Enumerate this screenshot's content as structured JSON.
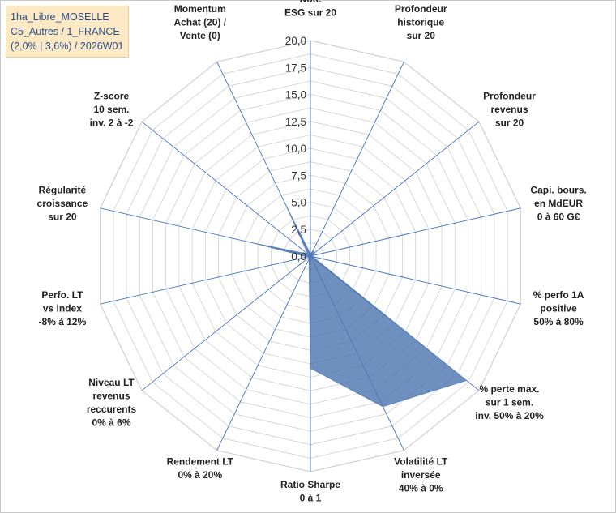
{
  "title_lines": [
    "1ha_Libre_MOSELLE",
    "C5_Autres / 1_FRANCE",
    "(2,0% | 3,6%) / 2026W01"
  ],
  "chart_data": {
    "type": "radar",
    "r_range": [
      0,
      20
    ],
    "ticks": [
      "0,0",
      "2,5",
      "5,0",
      "7,5",
      "10,0",
      "12,5",
      "15,0",
      "17,5",
      "20,0"
    ],
    "grid_levels": 16,
    "axes": [
      [
        "Note",
        "ESG sur 20"
      ],
      [
        "Profondeur",
        "historique",
        "sur 20"
      ],
      [
        "Profondeur",
        "revenus",
        "sur 20"
      ],
      [
        "Capi. bours.",
        "en MdEUR",
        "0 à 60 G€"
      ],
      [
        "% perfo 1A",
        "positive",
        "50% à 80%"
      ],
      [
        "% perte max.",
        "sur 1 sem.",
        "inv. 50% à 20%"
      ],
      [
        "Volatilité LT",
        "inversée",
        "40% à 0%"
      ],
      [
        "Ratio Sharpe",
        "0 à 1"
      ],
      [
        "Rendement LT",
        "0% à 20%"
      ],
      [
        "Niveau LT",
        "revenus",
        "reccurents",
        "0% à 6%"
      ],
      [
        "Perfo. LT",
        "vs index",
        "-8% à 12%"
      ],
      [
        "Régularité",
        "croissance",
        "sur 20"
      ],
      [
        "Z-score",
        "10 sem.",
        "inv. 2 à -2"
      ],
      [
        "Momentum",
        "Achat (20) /",
        "Vente (0)"
      ]
    ],
    "series": [
      {
        "values": [
          0.2,
          0.5,
          0.5,
          0.2,
          0.2,
          18.5,
          15.5,
          10.4,
          0.3,
          0.2,
          0.3,
          5.3,
          0.3,
          4.9
        ],
        "fill": "#4f78b0",
        "fill_opacity": 0.82,
        "stroke": "#5b84bd"
      }
    ],
    "colors": {
      "grid": "#d0d0d0",
      "spokes": "#4472c4"
    }
  }
}
